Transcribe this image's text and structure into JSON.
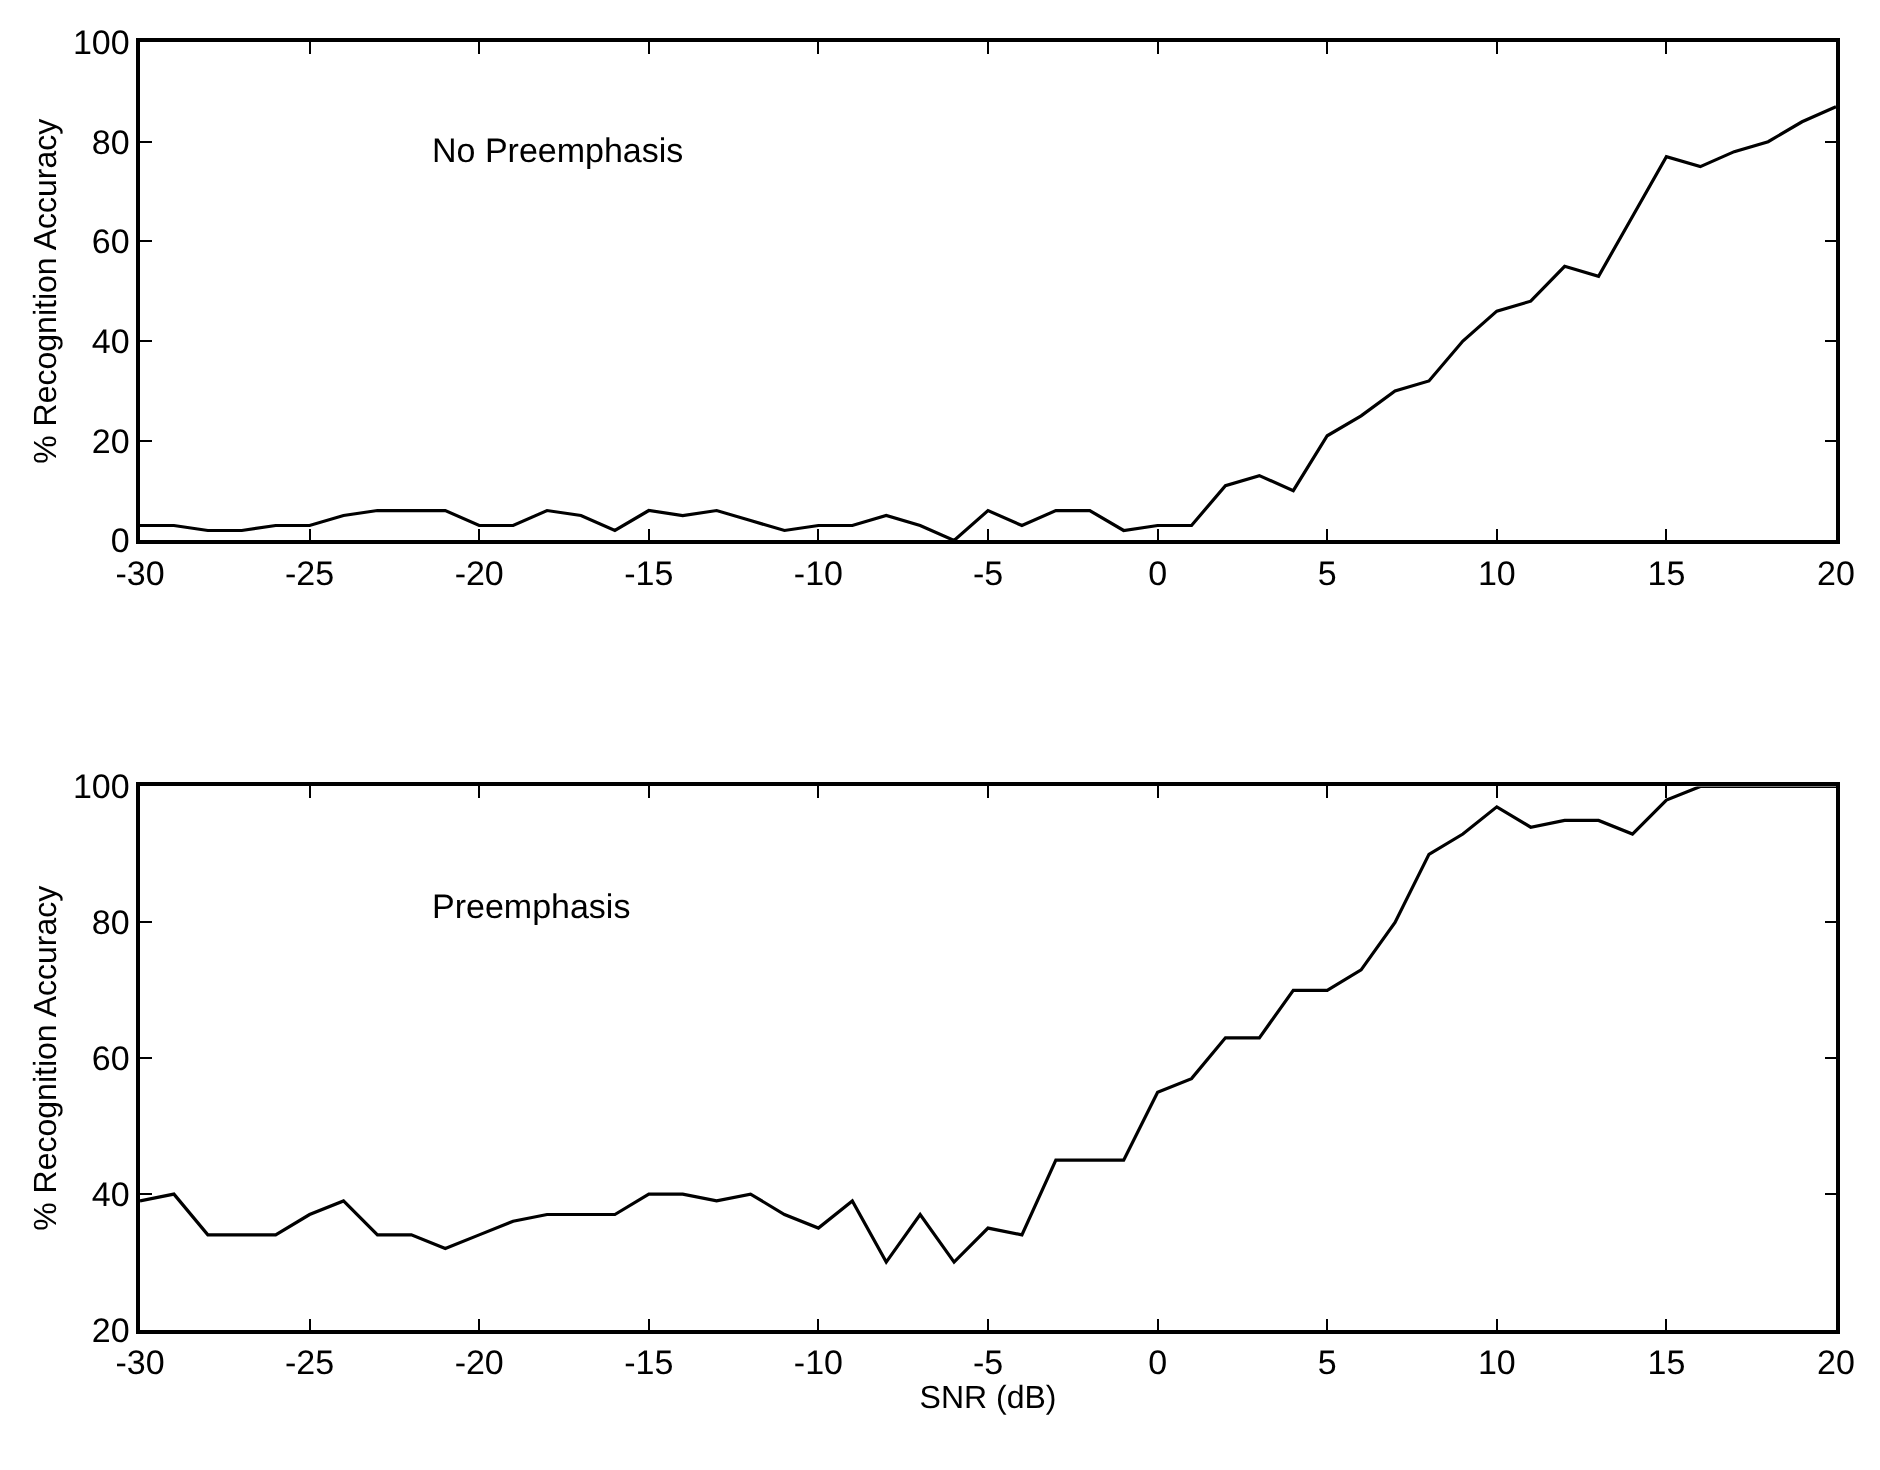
{
  "chart_data": [
    {
      "type": "line",
      "x": [
        -30,
        -29,
        -28,
        -27,
        -26,
        -25,
        -24,
        -23,
        -22,
        -21,
        -20,
        -19,
        -18,
        -17,
        -16,
        -15,
        -14,
        -13,
        -12,
        -11,
        -10,
        -9,
        -8,
        -7,
        -6,
        -5,
        -4,
        -3,
        -2,
        -1,
        0,
        1,
        2,
        3,
        4,
        5,
        6,
        7,
        8,
        9,
        10,
        11,
        12,
        13,
        14,
        15,
        16,
        17,
        18,
        19,
        20
      ],
      "series": [
        {
          "color": "#000000",
          "values": [
            3,
            3,
            2,
            2,
            3,
            3,
            5,
            6,
            6,
            6,
            3,
            3,
            6,
            5,
            2,
            6,
            5,
            6,
            4,
            2,
            3,
            3,
            5,
            3,
            0,
            6,
            3,
            6,
            6,
            2,
            3,
            3,
            11,
            13,
            10,
            21,
            25,
            30,
            32,
            40,
            46,
            48,
            55,
            53,
            65,
            77,
            75,
            78,
            80,
            84,
            87
          ]
        }
      ],
      "ylabel": "% Recognition Accuracy",
      "annotations": [
        "No Preemphasis"
      ],
      "xlim": [
        -30,
        20
      ],
      "xticks": [
        -30,
        -25,
        -20,
        -15,
        -10,
        -5,
        0,
        5,
        10,
        15,
        20
      ],
      "ylim": [
        0,
        100
      ],
      "yticks": [
        0,
        20,
        40,
        60,
        80,
        100
      ],
      "marker": "none",
      "line_style": "solid"
    },
    {
      "type": "line",
      "x": [
        -30,
        -29,
        -28,
        -27,
        -26,
        -25,
        -24,
        -23,
        -22,
        -21,
        -20,
        -19,
        -18,
        -17,
        -16,
        -15,
        -14,
        -13,
        -12,
        -11,
        -10,
        -9,
        -8,
        -7,
        -6,
        -5,
        -4,
        -3,
        -2,
        -1,
        0,
        1,
        2,
        3,
        4,
        5,
        6,
        7,
        8,
        9,
        10,
        11,
        12,
        13,
        14,
        15,
        16,
        17,
        18,
        19,
        20
      ],
      "series": [
        {
          "color": "#000000",
          "values": [
            39,
            40,
            34,
            34,
            34,
            37,
            39,
            34,
            34,
            32,
            34,
            36,
            37,
            37,
            37,
            40,
            40,
            39,
            40,
            37,
            35,
            39,
            30,
            37,
            30,
            35,
            34,
            45,
            45,
            45,
            55,
            57,
            63,
            63,
            70,
            70,
            73,
            80,
            90,
            93,
            97,
            94,
            95,
            95,
            93,
            98,
            100,
            100,
            100,
            100,
            100
          ]
        }
      ],
      "xlabel": "SNR (dB)",
      "ylabel": "% Recognition Accuracy",
      "annotations": [
        "Preemphasis"
      ],
      "xlim": [
        -30,
        20
      ],
      "xticks": [
        -30,
        -25,
        -20,
        -15,
        -10,
        -5,
        0,
        5,
        10,
        15,
        20
      ],
      "ylim": [
        20,
        100
      ],
      "yticks": [
        20,
        40,
        60,
        80,
        100
      ],
      "marker": "none",
      "line_style": "solid"
    }
  ]
}
